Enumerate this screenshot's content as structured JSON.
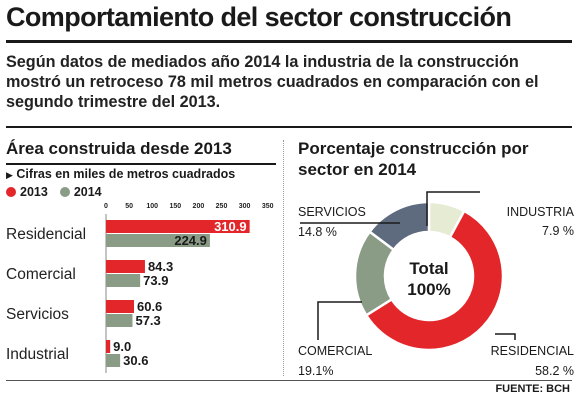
{
  "title": "Comportamiento del sector construcción",
  "intro": "Según datos de mediados año 2014 la industria de la construcción mostró un retroceso 78 mil metros cuadrados en comparación con el segundo trimestre del 2013.",
  "source": "FUENTE: BCH",
  "colors": {
    "red": "#e3262a",
    "gray": "#8a9c86",
    "slate": "#5e6a7e",
    "cream": "#e6ebd3"
  },
  "chart_data": [
    {
      "type": "bar",
      "orientation": "horizontal",
      "title": "Área construida desde 2013",
      "subtitle": "Cifras en miles de metros cuadrados",
      "categories": [
        "Residencial",
        "Comercial",
        "Servicios",
        "Industrial"
      ],
      "series": [
        {
          "name": "2013",
          "values": [
            310.9,
            84.3,
            60.6,
            9.0
          ],
          "labels": [
            "310.9",
            "84.3",
            "60.6",
            "9.0"
          ]
        },
        {
          "name": "2014",
          "values": [
            224.9,
            73.9,
            57.3,
            30.6
          ],
          "labels": [
            "224.9",
            "73.9",
            "57.3",
            "30.6"
          ]
        }
      ],
      "xlim": [
        0,
        350
      ],
      "ticks": [
        0,
        50,
        100,
        150,
        200,
        250,
        300,
        350
      ],
      "legend": "top-left",
      "grid": false
    },
    {
      "type": "pie",
      "donut": true,
      "title": "Porcentaje construcción por sector en 2014",
      "center_label": [
        "Total",
        "100%"
      ],
      "slices": [
        {
          "name": "INDUSTRIA",
          "value": 7.9,
          "label": "7.9 %"
        },
        {
          "name": "RESIDENCIAL",
          "value": 58.2,
          "label": "58.2 %"
        },
        {
          "name": "COMERCIAL",
          "value": 19.1,
          "label": "19.1%"
        },
        {
          "name": "SERVICIOS",
          "value": 14.8,
          "label": "14.8 %"
        }
      ]
    }
  ]
}
